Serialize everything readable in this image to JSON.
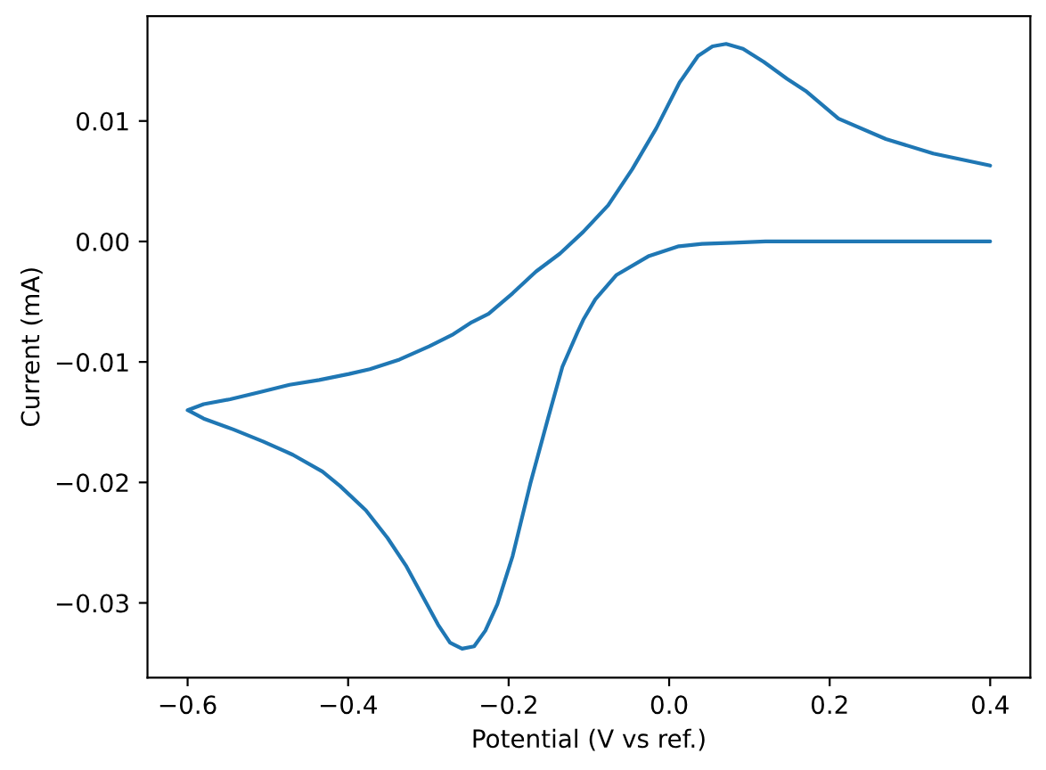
{
  "chart_data": {
    "type": "line",
    "xlabel": "Potential (V vs ref.)",
    "ylabel": "Current (mA)",
    "xlim": [
      -0.65,
      0.45
    ],
    "ylim": [
      -0.0362,
      0.0187
    ],
    "xticks": [
      {
        "value": -0.6,
        "label": "−0.6"
      },
      {
        "value": -0.4,
        "label": "−0.4"
      },
      {
        "value": -0.2,
        "label": "−0.2"
      },
      {
        "value": 0.0,
        "label": "0.0"
      },
      0.2,
      0.4
    ],
    "yticks": [
      {
        "value": -0.03,
        "label": "−0.03"
      },
      {
        "value": -0.02,
        "label": "−0.02"
      },
      {
        "value": -0.01,
        "label": "−0.01"
      },
      {
        "value": 0.0,
        "label": "0.00"
      },
      0.01
    ],
    "grid": false,
    "series": [
      {
        "color": "#1f77b4",
        "x": [
          0.4,
          0.3,
          0.2,
          0.12,
          0.08,
          0.041,
          0.012,
          -0.025,
          -0.066,
          -0.092,
          -0.107,
          -0.114,
          -0.133,
          -0.151,
          -0.173,
          -0.195,
          -0.214,
          -0.229,
          -0.243,
          -0.258,
          -0.273,
          -0.288,
          -0.306,
          -0.328,
          -0.351,
          -0.378,
          -0.41,
          -0.432,
          -0.469,
          -0.506,
          -0.543,
          -0.58,
          -0.6,
          -0.58,
          -0.547,
          -0.51,
          -0.473,
          -0.436,
          -0.399,
          -0.373,
          -0.336,
          -0.299,
          -0.269,
          -0.246,
          -0.225,
          -0.195,
          -0.166,
          -0.136,
          -0.107,
          -0.076,
          -0.046,
          -0.016,
          0.013,
          0.036,
          0.054,
          0.071,
          0.092,
          0.118,
          0.147,
          0.17,
          0.211,
          0.27,
          0.329,
          0.4
        ],
        "values": [
          0.0,
          0.0,
          0.0,
          0.0,
          -0.0001,
          -0.0002,
          -0.0004,
          -0.0012,
          -0.0028,
          -0.0048,
          -0.0065,
          -0.0075,
          -0.0104,
          -0.0147,
          -0.0201,
          -0.0261,
          -0.0301,
          -0.0323,
          -0.0336,
          -0.0338,
          -0.0333,
          -0.0318,
          -0.0296,
          -0.0269,
          -0.0246,
          -0.0223,
          -0.0203,
          -0.0191,
          -0.0177,
          -0.0166,
          -0.0156,
          -0.0147,
          -0.014,
          -0.0135,
          -0.0131,
          -0.0125,
          -0.0119,
          -0.0115,
          -0.011,
          -0.0106,
          -0.0098,
          -0.0087,
          -0.0077,
          -0.0067,
          -0.006,
          -0.0043,
          -0.0025,
          -0.001,
          0.0008,
          0.003,
          0.006,
          0.0094,
          0.0132,
          0.0154,
          0.0162,
          0.0164,
          0.016,
          0.0149,
          0.0135,
          0.0125,
          0.0102,
          0.0085,
          0.0073,
          0.0063
        ]
      }
    ]
  }
}
